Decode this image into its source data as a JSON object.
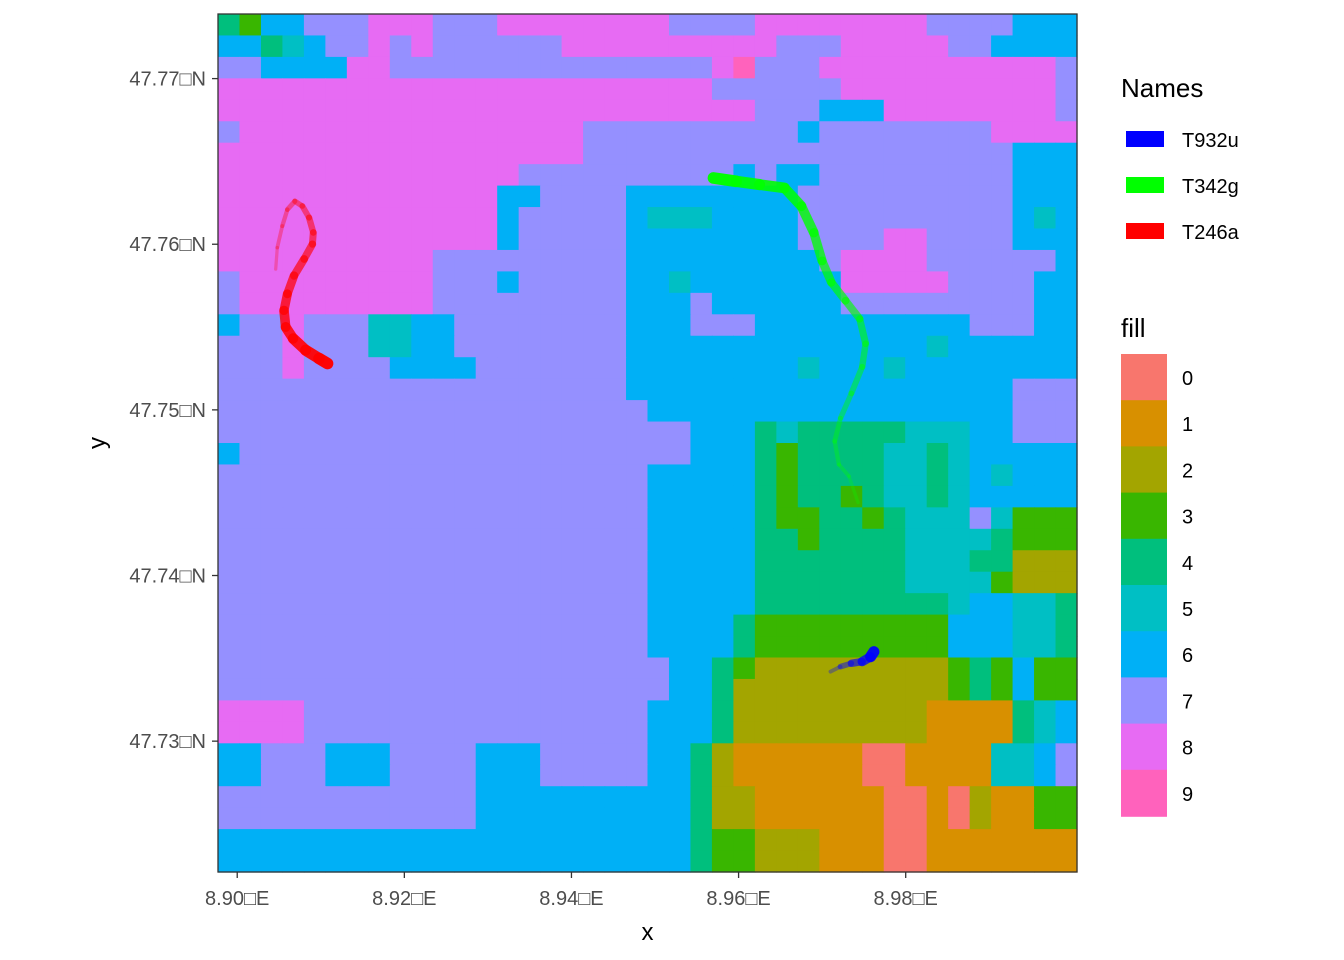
{
  "chart_data": {
    "type": "heatmap",
    "xlabel": "x",
    "ylabel": "y",
    "x_ticks": [
      {
        "value": 8.9,
        "label": "8.90□E"
      },
      {
        "value": 8.92,
        "label": "8.92□E"
      },
      {
        "value": 8.94,
        "label": "8.94□E"
      },
      {
        "value": 8.96,
        "label": "8.96□E"
      },
      {
        "value": 8.98,
        "label": "8.98□E"
      }
    ],
    "y_ticks": [
      {
        "value": 47.77,
        "label": "47.77□N"
      },
      {
        "value": 47.76,
        "label": "47.76□N"
      },
      {
        "value": 47.75,
        "label": "47.75□N"
      },
      {
        "value": 47.74,
        "label": "47.74□N"
      },
      {
        "value": 47.73,
        "label": "47.73□N"
      }
    ],
    "xlim": [
      8.8977,
      9.0005
    ],
    "ylim": [
      47.7221,
      47.7739
    ],
    "grid": false,
    "raster": {
      "legend_title": "fill",
      "classes": [
        {
          "label": "0",
          "color": "#F8766D"
        },
        {
          "label": "1",
          "color": "#D89000"
        },
        {
          "label": "2",
          "color": "#A3A500"
        },
        {
          "label": "3",
          "color": "#39B600"
        },
        {
          "label": "4",
          "color": "#00BF7D"
        },
        {
          "label": "5",
          "color": "#00BFC4"
        },
        {
          "label": "6",
          "color": "#00B0F6"
        },
        {
          "label": "7",
          "color": "#9590FF"
        },
        {
          "label": "8",
          "color": "#E76BF3"
        },
        {
          "label": "9",
          "color": "#FF62BC"
        }
      ],
      "grid": [
        "4366777888777888888887777888888887777666",
        "6645677878777777888888888877788888776666",
        "7766668877777777777777789777888888888887",
        "8888888888888888888888877777788888888887",
        "8888888888888888888888888777666888888887",
        "7888888888888888877777777776777777778888",
        "8888888888888888877777777777777777777666",
        "8888888888888877777777776766777777777666",
        "8888888888888667777666666667777777777666",
        "8888888888888677777655566667777777777656",
        "8888888888888677777666666667777887777666",
        "8888888888777777777666666666788887777776",
        "7888888888777677777665666666688888777766",
        "7888888888777777777666766666677777777766",
        "6778777556677777777666777666666666677766",
        "7778777556677777777666666666666665666666",
        "7778777766667777777666666665666566666666",
        "7777777777777777777666666666666666666777",
        "7777777777777777777766666666666666666777",
        "7777777777777777777777666454444455566777",
        "6777777777777777777777666434444554566666",
        "7777777777777777777766666434444554565666",
        "7777777777777777777766666434434554566666",
        "7777777777777777777766666433443455575333",
        "7777777777777777777766666443444455554333",
        "7777777777777777777766666444444455544222",
        "7777777777777777777766666444444455553222",
        "7777777777777777777766666444444444566554",
        "7777777777777777777766664333333333666554",
        "7777777777777777777766664333333333666554",
        "7777777777777777777776643222222222343633",
        "7777777777777777777776642222222222343633",
        "8888777777777777777766642222222221111456",
        "8888777777777777777766642222222221111456",
        "6677766677776667777766421111110011115567",
        "6677766677776667777766421111110011115567",
        "7777777777776666666666422111111001021133",
        "7777777777776666666666422111111001021133",
        "6666666666666666666666433222111001111111",
        "6666666666666666666666433222111001111111"
      ]
    },
    "tracks_legend_title": "Names",
    "series": [
      {
        "name": "T932u",
        "color": "#0000FF",
        "points": [
          [
            8.971,
            47.7342
          ],
          [
            8.9722,
            47.7345
          ],
          [
            8.9735,
            47.7347
          ],
          [
            8.9748,
            47.7348
          ],
          [
            8.9758,
            47.7351
          ],
          [
            8.9762,
            47.7354
          ]
        ]
      },
      {
        "name": "T342g",
        "color": "#00FF00",
        "points": [
          [
            8.9743,
            47.7444
          ],
          [
            8.9732,
            47.746
          ],
          [
            8.972,
            47.7467
          ],
          [
            8.9715,
            47.7481
          ],
          [
            8.9722,
            47.7495
          ],
          [
            8.9735,
            47.751
          ],
          [
            8.9748,
            47.7526
          ],
          [
            8.9752,
            47.754
          ],
          [
            8.9745,
            47.7555
          ],
          [
            8.9728,
            47.7566
          ],
          [
            8.9711,
            47.7577
          ],
          [
            8.97,
            47.759
          ],
          [
            8.969,
            47.7607
          ],
          [
            8.9675,
            47.7623
          ],
          [
            8.9655,
            47.7634
          ],
          [
            8.9625,
            47.7636
          ],
          [
            8.9597,
            47.7638
          ],
          [
            8.957,
            47.764
          ]
        ]
      },
      {
        "name": "T246a",
        "color": "#FF0000",
        "points": [
          [
            8.9046,
            47.7585
          ],
          [
            8.9048,
            47.7598
          ],
          [
            8.9054,
            47.7611
          ],
          [
            8.906,
            47.7621
          ],
          [
            8.9069,
            47.7626
          ],
          [
            8.9078,
            47.7623
          ],
          [
            8.9086,
            47.7616
          ],
          [
            8.9091,
            47.7607
          ],
          [
            8.909,
            47.76
          ],
          [
            8.908,
            47.7591
          ],
          [
            8.9068,
            47.7581
          ],
          [
            8.906,
            47.757
          ],
          [
            8.9056,
            47.756
          ],
          [
            8.9058,
            47.755
          ],
          [
            8.9067,
            47.7543
          ],
          [
            8.9082,
            47.7536
          ],
          [
            8.9098,
            47.7531
          ],
          [
            8.9108,
            47.7528
          ]
        ]
      }
    ]
  }
}
